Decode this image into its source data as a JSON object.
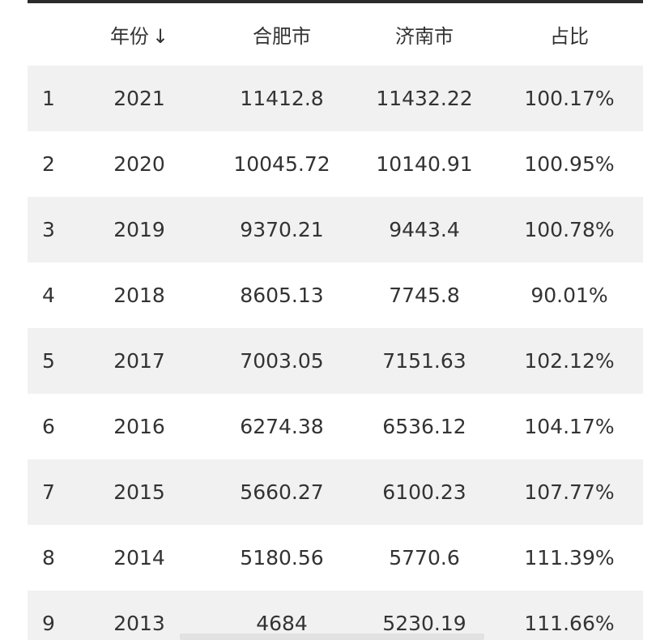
{
  "table": {
    "headers": {
      "index": "",
      "year": "年份",
      "sort_icon": "↓",
      "hefei": "合肥市",
      "jinan": "济南市",
      "ratio": "占比"
    },
    "rows": [
      {
        "index": "1",
        "year": "2021",
        "hefei": "11412.8",
        "jinan": "11432.22",
        "ratio": "100.17%"
      },
      {
        "index": "2",
        "year": "2020",
        "hefei": "10045.72",
        "jinan": "10140.91",
        "ratio": "100.95%"
      },
      {
        "index": "3",
        "year": "2019",
        "hefei": "9370.21",
        "jinan": "9443.4",
        "ratio": "100.78%"
      },
      {
        "index": "4",
        "year": "2018",
        "hefei": "8605.13",
        "jinan": "7745.8",
        "ratio": "90.01%"
      },
      {
        "index": "5",
        "year": "2017",
        "hefei": "7003.05",
        "jinan": "7151.63",
        "ratio": "102.12%"
      },
      {
        "index": "6",
        "year": "2016",
        "hefei": "6274.38",
        "jinan": "6536.12",
        "ratio": "104.17%"
      },
      {
        "index": "7",
        "year": "2015",
        "hefei": "5660.27",
        "jinan": "6100.23",
        "ratio": "107.77%"
      },
      {
        "index": "8",
        "year": "2014",
        "hefei": "5180.56",
        "jinan": "5770.6",
        "ratio": "111.39%"
      },
      {
        "index": "9",
        "year": "2013",
        "hefei": "4684",
        "jinan": "5230.19",
        "ratio": "111.66%"
      }
    ]
  },
  "colors": {
    "header_border": "#2b2b2b",
    "row_stripe": "#f1f1f1",
    "text": "#333333"
  }
}
